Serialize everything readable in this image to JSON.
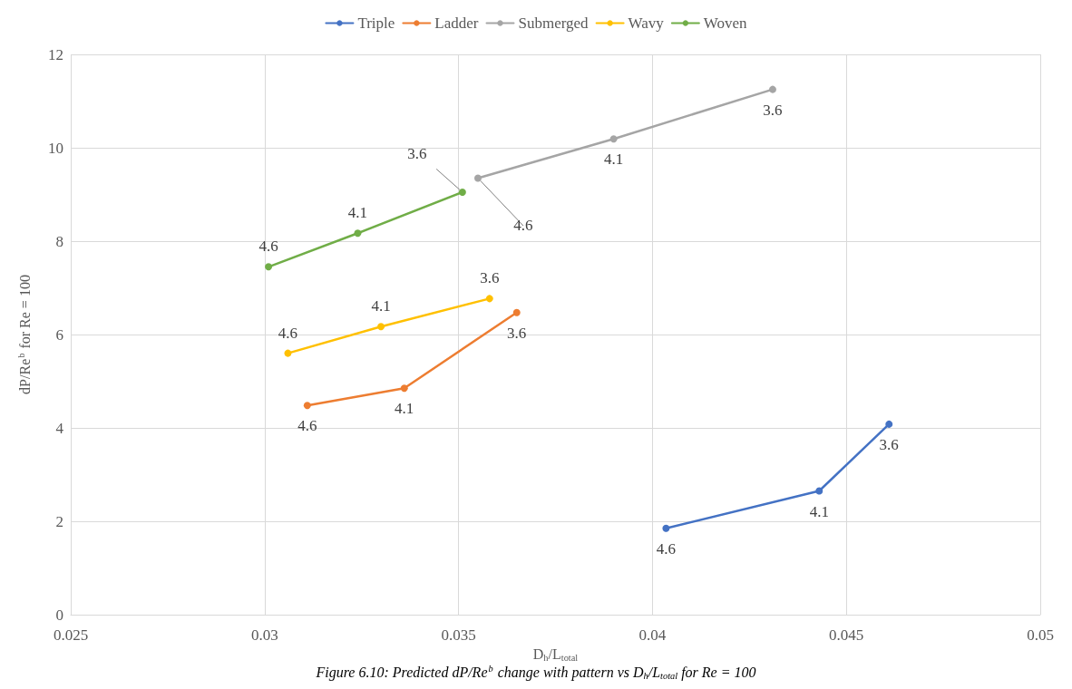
{
  "chart_data": {
    "type": "line",
    "xlabel": "D$_{h}$/L$_{total}$",
    "ylabel": "dP/Re$^{b}$ for Re = 100",
    "annotations": [
      "Figure 6.10: Predicted dP/Re$^{b}$ change with pattern vs D$_{h}$/L$_{total}$ for Re = 100",
      {
        "text": "4.6",
        "x": 0.04035,
        "y": 1.85
      },
      {
        "text": "4.1",
        "x": 0.0443,
        "y": 2.65
      },
      {
        "text": "3.6",
        "x": 0.0461,
        "y": 4.08
      },
      {
        "text": "4.6",
        "x": 0.0311,
        "y": 4.48
      },
      {
        "text": "4.1",
        "x": 0.0336,
        "y": 4.85
      },
      {
        "text": "3.6",
        "x": 0.0365,
        "y": 6.47
      },
      {
        "text": "4.6",
        "x": 0.0355,
        "y": 9.35
      },
      {
        "text": "4.1",
        "x": 0.039,
        "y": 10.19
      },
      {
        "text": "3.6",
        "x": 0.0431,
        "y": 11.25
      },
      {
        "text": "4.6",
        "x": 0.0306,
        "y": 5.6
      },
      {
        "text": "4.1",
        "x": 0.033,
        "y": 6.17
      },
      {
        "text": "3.6",
        "x": 0.0358,
        "y": 6.77
      },
      {
        "text": "4.6",
        "x": 0.0301,
        "y": 7.45
      },
      {
        "text": "4.1",
        "x": 0.0324,
        "y": 8.17
      },
      {
        "text": "3.6",
        "x": 0.0351,
        "y": 9.05
      }
    ],
    "series": [
      {
        "name": "Triple",
        "color": "#4472c4",
        "x": [
          0.04035,
          0.0443,
          0.0461
        ],
        "values": [
          1.85,
          2.65,
          4.08
        ]
      },
      {
        "name": "Ladder",
        "color": "#ed7d31",
        "x": [
          0.0311,
          0.0336,
          0.0365
        ],
        "values": [
          4.48,
          4.85,
          6.47
        ]
      },
      {
        "name": "Submerged",
        "color": "#a5a5a5",
        "x": [
          0.0355,
          0.039,
          0.0431
        ],
        "values": [
          9.35,
          10.19,
          11.25
        ]
      },
      {
        "name": "Wavy",
        "color": "#ffc000",
        "x": [
          0.0306,
          0.033,
          0.0358
        ],
        "values": [
          5.6,
          6.17,
          6.77
        ]
      },
      {
        "name": "Woven",
        "color": "#70ad47",
        "x": [
          0.0301,
          0.0324,
          0.0351
        ],
        "values": [
          7.45,
          8.17,
          9.05
        ]
      }
    ],
    "xlim": [
      0.025,
      0.05
    ],
    "xticks": [
      0.025,
      0.03,
      0.035,
      0.04,
      0.045,
      0.05
    ],
    "ylim": [
      0,
      12
    ],
    "yticks": [
      0,
      2,
      4,
      6,
      8,
      10,
      12
    ],
    "grid": true,
    "legend": "top",
    "marker": "circle",
    "line_style": "solid"
  }
}
